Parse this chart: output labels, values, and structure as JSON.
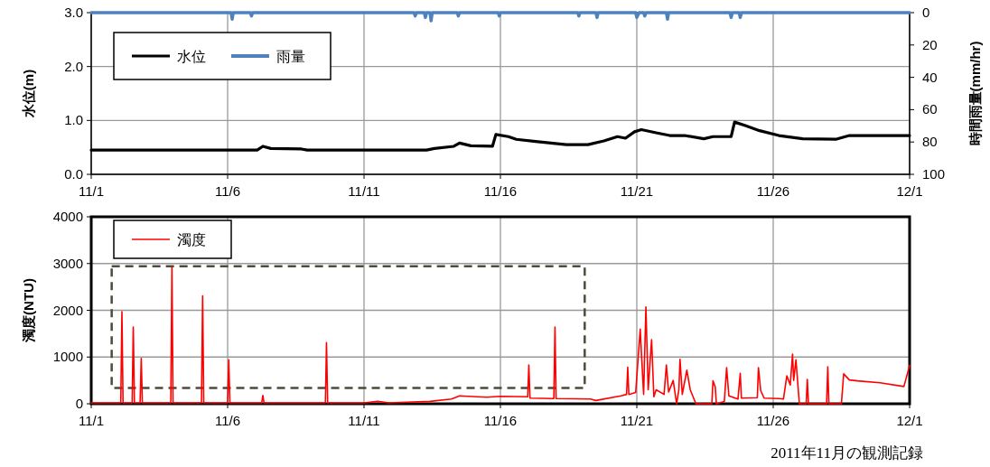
{
  "chart_data": [
    {
      "type": "line",
      "ylabel": "水位(m)",
      "y2label": "時間雨量(mm/hr)",
      "grid": true,
      "legend": "top left",
      "xlim": [
        "2011-11-01",
        "2011-12-01"
      ],
      "xticks": [
        {
          "value": "2011-11-01",
          "label": "11/1"
        },
        {
          "value": "2011-11-06",
          "label": "11/6"
        },
        {
          "value": "2011-11-11",
          "label": "11/11"
        },
        {
          "value": "2011-11-16",
          "label": "11/16"
        },
        {
          "value": "2011-11-21",
          "label": "11/21"
        },
        {
          "value": "2011-11-26",
          "label": "11/26"
        },
        {
          "value": "2011-12-01",
          "label": "12/1"
        }
      ],
      "ylim": [
        0,
        3
      ],
      "yticks": [
        {
          "value": 0,
          "label": "0.0"
        },
        {
          "value": 1,
          "label": "1.0"
        },
        {
          "value": 2,
          "label": "2.0"
        },
        {
          "value": 3,
          "label": "3.0"
        }
      ],
      "y2lim": [
        100,
        0
      ],
      "y2ticks": [
        0,
        20,
        40,
        60,
        80,
        100
      ],
      "series": [
        {
          "name": "水位",
          "color": "#000000",
          "x": [
            "2011-11-01T00:00",
            "2011-11-07T02:00",
            "2011-11-07T07:00",
            "2011-11-07T14:00",
            "2011-11-08T17:00",
            "2011-11-08T22:00",
            "2011-11-13T07:00",
            "2011-11-13T14:00",
            "2011-11-14T07:00",
            "2011-11-14T12:00",
            "2011-11-14T22:00",
            "2011-11-15T17:00",
            "2011-11-15T20:00",
            "2011-11-16T07:00",
            "2011-11-16T14:00",
            "2011-11-17T07:00",
            "2011-11-18T10:00",
            "2011-11-19T05:00",
            "2011-11-19T19:00",
            "2011-11-20T07:00",
            "2011-11-20T14:00",
            "2011-11-20T22:00",
            "2011-11-21T04:00",
            "2011-11-21T17:00",
            "2011-11-22T05:00",
            "2011-11-22T18:00",
            "2011-11-23T11:00",
            "2011-11-23T19:00",
            "2011-11-24T11:00",
            "2011-11-24T14:00",
            "2011-11-25T00:00",
            "2011-11-25T12:00",
            "2011-11-26T05:00",
            "2011-11-27T02:00",
            "2011-11-28T07:00",
            "2011-11-28T19:00",
            "2011-12-01T00:00"
          ],
          "values": [
            0.45,
            0.45,
            0.52,
            0.48,
            0.47,
            0.45,
            0.45,
            0.48,
            0.52,
            0.58,
            0.53,
            0.52,
            0.74,
            0.7,
            0.65,
            0.61,
            0.55,
            0.55,
            0.62,
            0.7,
            0.67,
            0.79,
            0.83,
            0.77,
            0.72,
            0.72,
            0.66,
            0.7,
            0.7,
            0.97,
            0.9,
            0.81,
            0.72,
            0.66,
            0.65,
            0.72,
            0.72
          ]
        },
        {
          "name": "雨量",
          "color": "#4f81bd",
          "axis": "y2",
          "x": [
            "2011-11-01T00:00",
            "2011-11-06T03:00",
            "2011-11-06T04:00",
            "2011-11-06T05:00",
            "2011-11-06T20:00",
            "2011-11-06T21:00",
            "2011-11-06T22:00",
            "2011-11-12T20:00",
            "2011-11-12T21:00",
            "2011-11-12T22:00",
            "2011-11-13T05:00",
            "2011-11-13T06:00",
            "2011-11-13T07:00",
            "2011-11-13T10:00",
            "2011-11-13T11:00",
            "2011-11-13T12:00",
            "2011-11-14T10:00",
            "2011-11-14T11:00",
            "2011-11-14T12:00",
            "2011-11-15T22:00",
            "2011-11-15T23:00",
            "2011-11-16T00:00",
            "2011-11-18T20:00",
            "2011-11-18T21:00",
            "2011-11-18T22:00",
            "2011-11-19T12:00",
            "2011-11-19T13:00",
            "2011-11-19T14:00",
            "2011-11-20T23:00",
            "2011-11-21T00:00",
            "2011-11-21T02:00",
            "2011-11-21T06:00",
            "2011-11-21T07:00",
            "2011-11-21T08:00",
            "2011-11-22T02:00",
            "2011-11-22T03:00",
            "2011-11-22T04:00",
            "2011-11-24T10:00",
            "2011-11-24T11:00",
            "2011-11-24T12:00",
            "2011-11-24T18:00",
            "2011-11-24T19:00",
            "2011-11-24T20:00",
            "2011-12-01T00:00"
          ],
          "values": [
            0,
            0,
            4,
            0,
            0,
            2,
            0,
            0,
            2,
            0,
            0,
            3,
            0,
            0,
            5,
            0,
            0,
            2,
            0,
            0,
            2,
            0,
            0,
            2,
            0,
            0,
            3,
            0,
            0,
            3,
            0,
            0,
            2,
            0,
            0,
            4,
            0,
            0,
            3,
            0,
            0,
            3,
            0,
            0
          ]
        }
      ]
    },
    {
      "type": "line",
      "ylabel": "濁度(NTU)",
      "grid": true,
      "legend": "top left",
      "xlim": [
        "2011-11-01",
        "2011-12-01"
      ],
      "xticks": [
        {
          "value": "2011-11-01",
          "label": "11/1"
        },
        {
          "value": "2011-11-06",
          "label": "11/6"
        },
        {
          "value": "2011-11-11",
          "label": "11/11"
        },
        {
          "value": "2011-11-16",
          "label": "11/16"
        },
        {
          "value": "2011-11-21",
          "label": "11/21"
        },
        {
          "value": "2011-11-26",
          "label": "11/26"
        },
        {
          "value": "2011-12-01",
          "label": "12/1"
        }
      ],
      "ylim": [
        0,
        4000
      ],
      "yticks": [
        0,
        1000,
        2000,
        3000,
        4000
      ],
      "annotations": [
        "2011年11月の観測記録"
      ],
      "series": [
        {
          "name": "濁度",
          "color": "#ff0000",
          "x": [
            "2011-11-01T00:00",
            "2011-11-02T02:00",
            "2011-11-02T03:00",
            "2011-11-02T04:00",
            "2011-11-02T12:00",
            "2011-11-02T13:00",
            "2011-11-02T14:00",
            "2011-11-02T19:00",
            "2011-11-02T20:00",
            "2011-11-02T21:00",
            "2011-11-03T22:00",
            "2011-11-03T23:00",
            "2011-11-04T00:00",
            "2011-11-05T01:00",
            "2011-11-05T02:00",
            "2011-11-05T03:00",
            "2011-11-06T00:00",
            "2011-11-06T01:00",
            "2011-11-06T02:00",
            "2011-11-07T06:00",
            "2011-11-07T07:00",
            "2011-11-07T08:00",
            "2011-11-09T14:00",
            "2011-11-09T15:00",
            "2011-11-09T16:00",
            "2011-11-11T00:00",
            "2011-11-11T12:00",
            "2011-11-11T22:00",
            "2011-11-13T10:00",
            "2011-11-14T05:00",
            "2011-11-14T12:00",
            "2011-11-15T12:00",
            "2011-11-16T00:00",
            "2011-11-17T00:00",
            "2011-11-17T01:00",
            "2011-11-17T02:00",
            "2011-11-17T23:00",
            "2011-11-18T00:00",
            "2011-11-18T01:00",
            "2011-11-19T07:00",
            "2011-11-19T12:00",
            "2011-11-20T10:00",
            "2011-11-20T15:00",
            "2011-11-20T16:00",
            "2011-11-20T17:00",
            "2011-11-20T23:00",
            "2011-11-21T03:00",
            "2011-11-21T04:00",
            "2011-11-21T06:00",
            "2011-11-21T08:00",
            "2011-11-21T10:00",
            "2011-11-21T13:00",
            "2011-11-21T15:00",
            "2011-11-21T17:00",
            "2011-11-22T00:00",
            "2011-11-22T02:00",
            "2011-11-22T04:00",
            "2011-11-22T08:00",
            "2011-11-22T11:00",
            "2011-11-22T13:00",
            "2011-11-22T14:00",
            "2011-11-22T16:00",
            "2011-11-22T20:00",
            "2011-11-22T23:00",
            "2011-11-23T04:00",
            "2011-11-23T18:00",
            "2011-11-23T19:00",
            "2011-11-23T21:00",
            "2011-11-23T22:00",
            "2011-11-24T05:00",
            "2011-11-24T07:00",
            "2011-11-24T09:00",
            "2011-11-24T17:00",
            "2011-11-24T19:00",
            "2011-11-24T20:00",
            "2011-11-25T10:00",
            "2011-11-25T11:00",
            "2011-11-25T13:00",
            "2011-11-25T16:00",
            "2011-11-26T05:00",
            "2011-11-26T09:00",
            "2011-11-26T12:00",
            "2011-11-26T15:00",
            "2011-11-26T17:00",
            "2011-11-26T18:00",
            "2011-11-26T20:00",
            "2011-11-26T23:00",
            "2011-11-27T05:00",
            "2011-11-27T06:00",
            "2011-11-27T07:00",
            "2011-11-27T23:00",
            "2011-11-28T00:00",
            "2011-11-28T01:00",
            "2011-11-28T12:00",
            "2011-11-28T14:00",
            "2011-11-28T19:00",
            "2011-11-29T02:00",
            "2011-11-29T22:00",
            "2011-11-30T19:00",
            "2011-12-01T00:00"
          ],
          "values": [
            20,
            20,
            1970,
            20,
            20,
            1640,
            20,
            20,
            970,
            20,
            20,
            2920,
            20,
            20,
            2310,
            20,
            20,
            940,
            20,
            20,
            180,
            20,
            20,
            1310,
            20,
            20,
            50,
            20,
            50,
            100,
            170,
            140,
            160,
            150,
            830,
            120,
            110,
            1640,
            110,
            100,
            70,
            170,
            200,
            780,
            200,
            240,
            1600,
            1100,
            200,
            2070,
            300,
            1370,
            150,
            300,
            200,
            830,
            250,
            500,
            0,
            300,
            950,
            200,
            720,
            300,
            0,
            0,
            490,
            360,
            0,
            50,
            770,
            170,
            100,
            650,
            120,
            130,
            770,
            280,
            120,
            110,
            100,
            600,
            400,
            1060,
            500,
            940,
            0,
            0,
            520,
            0,
            0,
            790,
            0,
            0,
            640,
            510,
            490,
            450,
            370,
            820
          ]
        }
      ]
    }
  ]
}
